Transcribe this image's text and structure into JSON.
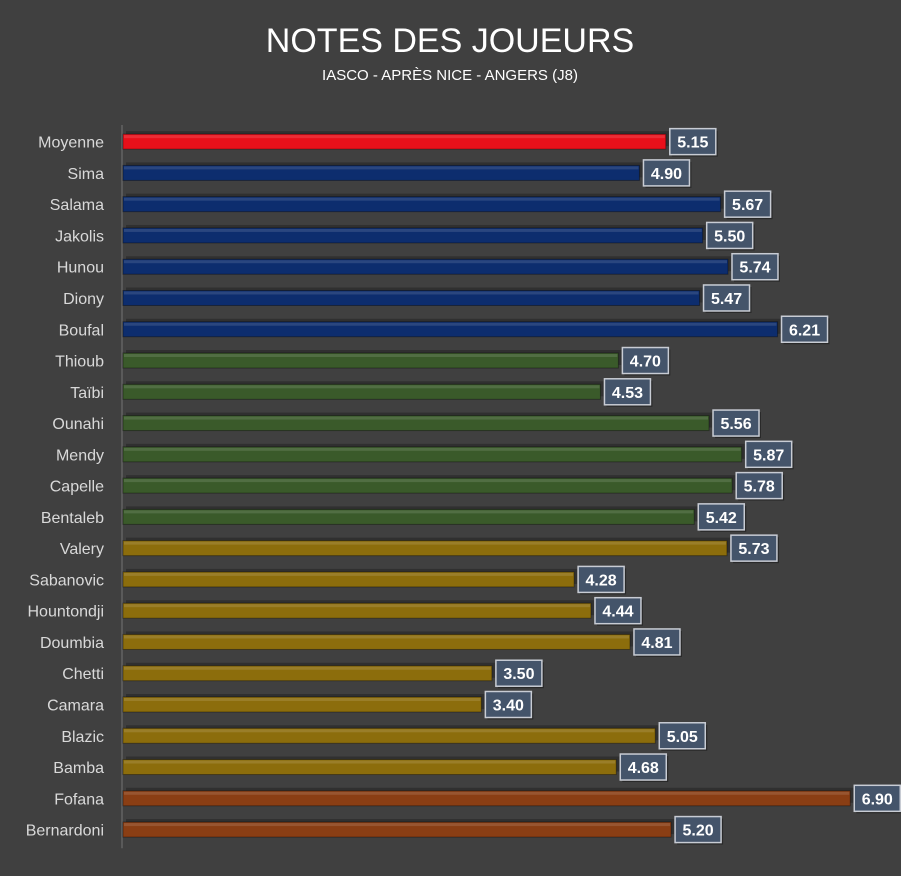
{
  "chart_data": {
    "type": "bar",
    "orientation": "horizontal",
    "title": "NOTES DES JOUEURS",
    "subtitle": "IASCO - APRÈS  NICE - ANGERS (J8)",
    "xlabel": "",
    "ylabel": "",
    "xlim": [
      0,
      6.9
    ],
    "grid": false,
    "legend": "none",
    "categories": [
      "Moyenne",
      "Sima",
      "Salama",
      "Jakolis",
      "Hunou",
      "Diony",
      "Boufal",
      "Thioub",
      "Taïbi",
      "Ounahi",
      "Mendy",
      "Capelle",
      "Bentaleb",
      "Valery",
      "Sabanovic",
      "Hountondji",
      "Doumbia",
      "Chetti",
      "Camara",
      "Blazic",
      "Bamba",
      "Fofana",
      "Bernardoni"
    ],
    "values": [
      5.15,
      4.9,
      5.67,
      5.5,
      5.74,
      5.47,
      6.21,
      4.7,
      4.53,
      5.56,
      5.87,
      5.78,
      5.42,
      5.73,
      4.28,
      4.44,
      4.81,
      3.5,
      3.4,
      5.05,
      4.68,
      6.9,
      5.2
    ],
    "value_labels": [
      "5.15",
      "4.90",
      "5.67",
      "5.50",
      "5.74",
      "5.47",
      "6.21",
      "4.70",
      "4.53",
      "5.56",
      "5.87",
      "5.78",
      "5.42",
      "5.73",
      "4.28",
      "4.44",
      "4.81",
      "3.50",
      "3.40",
      "5.05",
      "4.68",
      "6.90",
      "5.20"
    ],
    "groups": [
      "average",
      "attack",
      "attack",
      "attack",
      "attack",
      "attack",
      "attack",
      "midfield",
      "midfield",
      "midfield",
      "midfield",
      "midfield",
      "midfield",
      "defense",
      "defense",
      "defense",
      "defense",
      "defense",
      "defense",
      "defense",
      "defense",
      "goalkeeper",
      "goalkeeper"
    ],
    "group_colors": {
      "average": "#e8101a",
      "attack": "#0d2d6e",
      "midfield": "#3a5a2a",
      "defense": "#8c6d0c",
      "goalkeeper": "#8a3e14"
    },
    "colors": {
      "background": "#404040",
      "label_box_fill": "#44546a",
      "label_box_border": "#c8ccd4",
      "text": "#ffffff",
      "category_text": "#d9d9d9",
      "axis": "#5a5a5a"
    }
  }
}
